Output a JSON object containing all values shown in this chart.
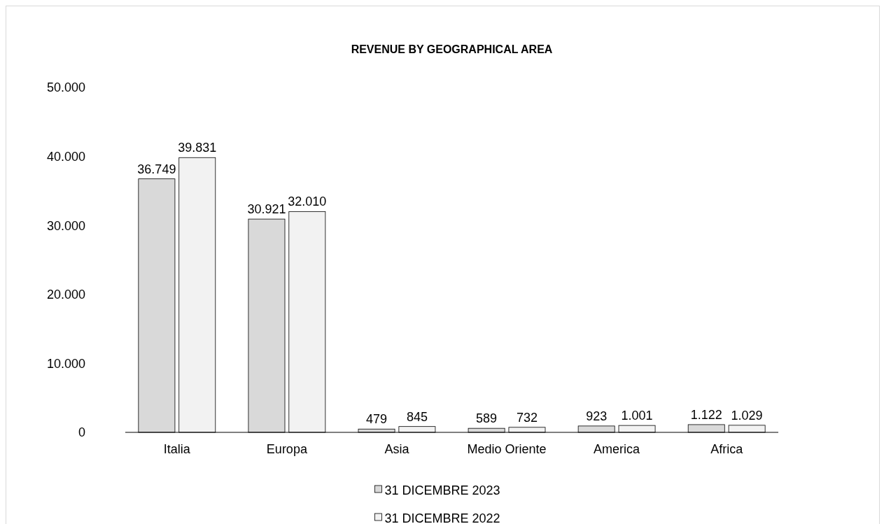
{
  "chart_data": {
    "type": "bar",
    "title": "REVENUE BY GEOGRAPHICAL AREA",
    "categories": [
      "Italia",
      "Europa",
      "Asia",
      "Medio Oriente",
      "America",
      "Africa"
    ],
    "series": [
      {
        "name": "31 DICEMBRE 2023",
        "color": "#d9d9d9",
        "values": [
          36749,
          30921,
          479,
          589,
          923,
          1122
        ],
        "value_labels": [
          "36.749",
          "30.921",
          "479",
          "589",
          "923",
          "1.122"
        ]
      },
      {
        "name": "31 DICEMBRE 2022",
        "color": "#f2f2f2",
        "values": [
          39831,
          32010,
          845,
          732,
          1001,
          1029
        ],
        "value_labels": [
          "39.831",
          "32.010",
          "845",
          "732",
          "1.001",
          "1.029"
        ]
      }
    ],
    "ylim": [
      0,
      50000
    ],
    "yticks": [
      {
        "value": 0,
        "label": "0"
      },
      {
        "value": 10000,
        "label": "10.000"
      },
      {
        "value": 20000,
        "label": "20.000"
      },
      {
        "value": 30000,
        "label": "30.000"
      },
      {
        "value": 40000,
        "label": "40.000"
      },
      {
        "value": 50000,
        "label": "50.000"
      }
    ],
    "grid": false,
    "legend": "bottom"
  }
}
